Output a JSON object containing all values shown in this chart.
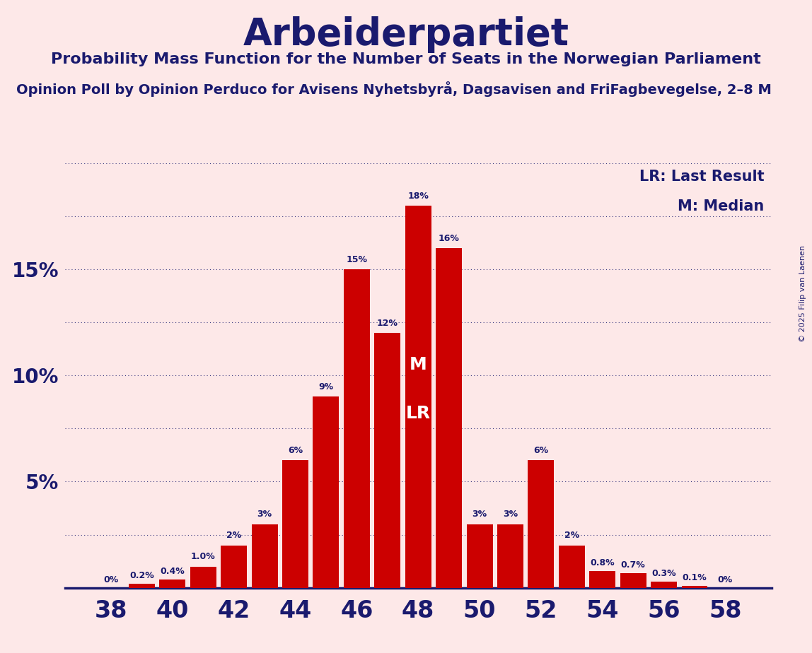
{
  "title": "Arbeiderpartiet",
  "subtitle": "Probability Mass Function for the Number of Seats in the Norwegian Parliament",
  "subtitle2": "Opinion Poll by Opinion Perduco for Avisens Nyhetsbyrå, Dagsavisen and FriFagbevegelse, 2–8 M",
  "copyright": "© 2025 Filip van Laenen",
  "legend_lr": "LR: Last Result",
  "legend_m": "M: Median",
  "seats": [
    38,
    39,
    40,
    41,
    42,
    43,
    44,
    45,
    46,
    47,
    48,
    49,
    50,
    51,
    52,
    53,
    54,
    55,
    56,
    57,
    58
  ],
  "probs": [
    0.0,
    0.2,
    0.4,
    1.0,
    2.0,
    3.0,
    6.0,
    9.0,
    15.0,
    12.0,
    18.0,
    16.0,
    3.0,
    3.0,
    6.0,
    2.0,
    0.8,
    0.7,
    0.3,
    0.1,
    0.0
  ],
  "prob_labels": [
    "0%",
    "0.2%",
    "0.4%",
    "1.0%",
    "2%",
    "3%",
    "6%",
    "9%",
    "15%",
    "12%",
    "18%",
    "16%",
    "3%",
    "3%",
    "6%",
    "2%",
    "0.8%",
    "0.7%",
    "0.3%",
    "0.1%",
    "0%"
  ],
  "median_seat": 48,
  "lr_seat": 48,
  "bar_color": "#cc0000",
  "background_color": "#fde8e8",
  "text_color": "#1a1a6e",
  "grid_color": "#1a1a6e",
  "xtick_labels": [
    "38",
    "40",
    "42",
    "44",
    "46",
    "48",
    "50",
    "52",
    "54",
    "56",
    "58"
  ],
  "xlim": [
    36.5,
    59.5
  ],
  "ylim": [
    0,
    20
  ],
  "grid_lines": [
    2.5,
    5.0,
    7.5,
    10.0,
    12.5,
    15.0,
    17.5,
    20.0
  ]
}
